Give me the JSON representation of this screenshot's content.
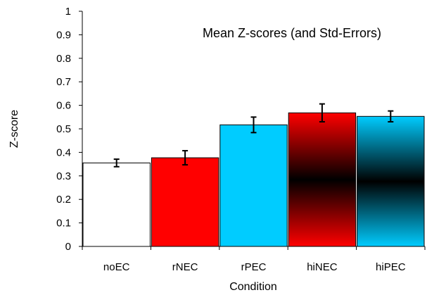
{
  "chart_data": {
    "type": "bar",
    "title": "Mean Z-scores (and Std-Errors)",
    "xlabel": "Condition",
    "ylabel": "Z-score",
    "ylim": [
      0,
      1
    ],
    "yticks": [
      0,
      0.1,
      0.2,
      0.3,
      0.4,
      0.5,
      0.6,
      0.7,
      0.8,
      0.9,
      1
    ],
    "ytick_labels": [
      "0",
      "0.1",
      "0.2",
      "0.3",
      "0.4",
      "0.5",
      "0.6",
      "0.7",
      "0.8",
      "0.9",
      "1"
    ],
    "categories": [
      "noEC",
      "rNEC",
      "rPEC",
      "hiNEC",
      "hiPEC"
    ],
    "values": [
      0.355,
      0.377,
      0.517,
      0.568,
      0.553
    ],
    "errors": [
      0.016,
      0.03,
      0.033,
      0.038,
      0.023
    ],
    "grid": false,
    "legend": "none",
    "fills": [
      {
        "style": "solid",
        "color": "#ffffff"
      },
      {
        "style": "solid",
        "color": "#ff0000"
      },
      {
        "style": "solid",
        "color": "#00ccff"
      },
      {
        "style": "gradient",
        "edge": "#ff0000",
        "center": "#000000"
      },
      {
        "style": "gradient",
        "edge": "#00ccff",
        "center": "#000000"
      }
    ],
    "bar_outline": "#000000"
  }
}
